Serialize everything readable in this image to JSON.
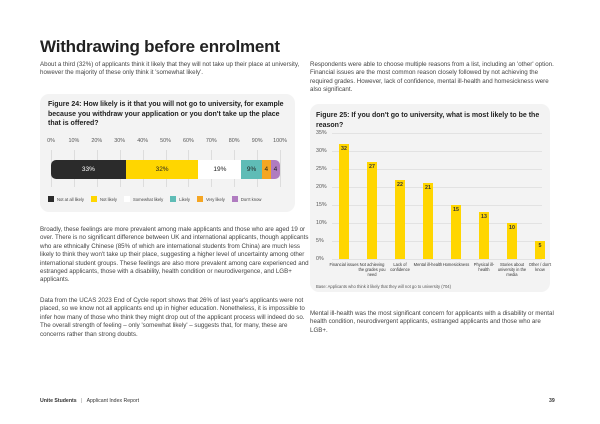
{
  "page": {
    "title": "Withdrawing before enrolment",
    "intro_left": "About a third (32%) of applicants think it likely that they will not take up their place at university, however the majority of these only think it 'somewhat likely'.",
    "intro_right": "Respondents were able to choose multiple reasons from a list, including an 'other' option. Financial issues are the most common reason closely followed by not achieving the required grades. However, lack of confidence, mental ill-health and homesickness were also significant.",
    "para_broadly": "Broadly, these feelings are more prevalent among male applicants and those who are aged 19 or over. There is no significant difference between UK and international applicants, though applicants who are ethnically Chinese (85% of which are international students from China) are much less likely to think they won't take up their place, suggesting a higher level of uncertainty among other international student groups. These feelings are also more prevalent among care experienced and estranged applicants, those with a disability, health condition or neurodivergence, and LGB+ applicants.",
    "para_ucas": "Data from the UCAS 2023 End of Cycle report shows that 26% of last year's applicants were not placed, so we know not all applicants end up in higher education. Nonetheless, it is impossible to infer how many of those who think they might drop out of the applicant process will indeed do so. The overall strength of feeling – only 'somewhat likely' – suggests that, for many, these are concerns rather than strong doubts.",
    "para_mental": "Mental ill-health was the most significant concern for applicants with a disability or mental health condition, neurodivergent applicants, estranged applicants and those who are LGB+."
  },
  "footer": {
    "brand": "Unite Students",
    "separator": "|",
    "report": "Applicant Index Report",
    "page_number": "39"
  },
  "chart_data": [
    {
      "type": "bar",
      "stacked": true,
      "orientation": "horizontal",
      "title": "Figure 24: How likely is it that you will not go to university, for example because you withdraw your application or you don't take up the place that is offered?",
      "xlim": [
        0,
        100
      ],
      "x_ticks": [
        "0%",
        "10%",
        "20%",
        "30%",
        "40%",
        "50%",
        "60%",
        "70%",
        "80%",
        "90%",
        "100%"
      ],
      "series": [
        {
          "name": "Not at all likely",
          "value": 33,
          "label": "33%",
          "color": "#2b2b2b",
          "text_color": "#ffffff"
        },
        {
          "name": "Not likely",
          "value": 32,
          "label": "32%",
          "color": "#ffd600",
          "text_color": "#222222"
        },
        {
          "name": "Somewhat likely",
          "value": 19,
          "label": "19%",
          "color": "#ffffff",
          "text_color": "#222222"
        },
        {
          "name": "Likely",
          "value": 9,
          "label": "9%",
          "color": "#5fbcb6",
          "text_color": "#222222"
        },
        {
          "name": "Very likely",
          "value": 4,
          "label": "4",
          "color": "#f5a623",
          "text_color": "#222222"
        },
        {
          "name": "Don't know",
          "value": 4,
          "label": "4",
          "color": "#b07cc0",
          "text_color": "#222222"
        }
      ],
      "legend": "bottom"
    },
    {
      "type": "bar",
      "title": "Figure 25: If you don't go to university, what is most likely to be the reason?",
      "categories": [
        "Financial issues",
        "Not achieving the grades you need",
        "Lack of confidence",
        "Mental ill-health",
        "Homesickness",
        "Physical ill-health",
        "Stories about university in the media",
        "Other / don't know"
      ],
      "values": [
        32,
        27,
        22,
        21,
        15,
        13,
        10,
        5
      ],
      "ylim": [
        0,
        35
      ],
      "y_ticks": [
        "0%",
        "5%",
        "10%",
        "15%",
        "20%",
        "25%",
        "30%",
        "35%"
      ],
      "bar_color": "#ffd600",
      "grid": true,
      "note": "Base: Applicants who think it likely that they will not go to university (704)"
    }
  ]
}
